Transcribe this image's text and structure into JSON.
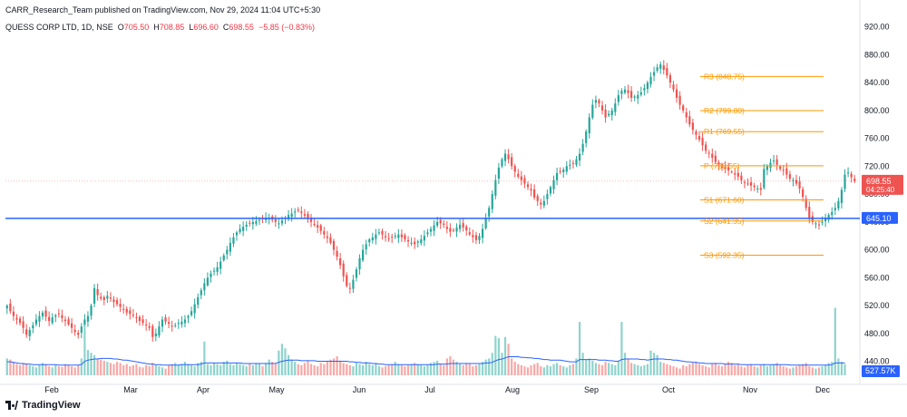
{
  "header": {
    "published": "CARR_Research_Team published on TradingView.com, Nov 29, 2024 11:04 UTC+5:30",
    "symbol": "QUESS CORP LTD, 1D, NSE",
    "o_label": "O",
    "o_value": "705.50",
    "h_label": "H",
    "h_value": "708.85",
    "l_label": "L",
    "l_value": "696.60",
    "c_label": "C",
    "c_value": "698.55",
    "change": "−5.85 (−0.83%)"
  },
  "logo": {
    "icon": "tradingview-logo-icon",
    "text": "TradingView"
  },
  "colors": {
    "up": "#26a69a",
    "down": "#ef5350",
    "pivot": "#ff9800",
    "hline": "#2962ff",
    "vol_up": "#8fd3cc",
    "vol_down": "#f7a9a7",
    "vol_ma": "#2962ff"
  },
  "chart_data": {
    "type": "candlestick",
    "y_axis": {
      "min": 420,
      "max": 935,
      "ticks": [
        920,
        880,
        840,
        800,
        760,
        720,
        680,
        640,
        600,
        560,
        520,
        480,
        440
      ]
    },
    "x_axis": {
      "labels": [
        "Feb",
        "Mar",
        "Apr",
        "May",
        "Jun",
        "Jul",
        "Aug",
        "Sep",
        "Oct",
        "Nov",
        "Dec"
      ]
    },
    "last_price": {
      "value": "698.55",
      "countdown": "04:25:40"
    },
    "horizontal_line": {
      "value": 645.1,
      "label": "645.10"
    },
    "pivots": [
      {
        "name": "R3",
        "label": "R3 (848.75)",
        "value": 848.75
      },
      {
        "name": "R2",
        "label": "R2 (799.80)",
        "value": 799.8
      },
      {
        "name": "R1",
        "label": "R1 (769.55)",
        "value": 769.55
      },
      {
        "name": "P",
        "label": "P (720.55)",
        "value": 720.55
      },
      {
        "name": "S1",
        "label": "S1 (671.60)",
        "value": 671.6
      },
      {
        "name": "S2",
        "label": "S2 (641.35)",
        "value": 641.35
      },
      {
        "name": "S3",
        "label": "S3 (592.35)",
        "value": 592.35
      }
    ],
    "volume": {
      "last_label": "527.57K"
    },
    "close": [
      520,
      512,
      505,
      500,
      495,
      488,
      478,
      485,
      492,
      500,
      505,
      510,
      504,
      498,
      503,
      506,
      508,
      502,
      498,
      493,
      488,
      482,
      478,
      490,
      500,
      505,
      520,
      545,
      535,
      530,
      528,
      534,
      530,
      525,
      522,
      518,
      515,
      510,
      508,
      506,
      502,
      498,
      495,
      492,
      488,
      475,
      480,
      490,
      500,
      497,
      494,
      490,
      492,
      495,
      497,
      500,
      505,
      512,
      522,
      532,
      542,
      552,
      560,
      566,
      570,
      575,
      583,
      592,
      600,
      610,
      618,
      625,
      630,
      633,
      636,
      638,
      640,
      641,
      643,
      645,
      646,
      645,
      643,
      640,
      638,
      642,
      646,
      650,
      652,
      655,
      657,
      653,
      649,
      645,
      640,
      636,
      632,
      627,
      622,
      617,
      610,
      600,
      590,
      578,
      562,
      548,
      545,
      557,
      572,
      588,
      600,
      608,
      615,
      618,
      622,
      625,
      622,
      618,
      616,
      618,
      620,
      622,
      618,
      615,
      612,
      610,
      608,
      612,
      615,
      620,
      625,
      630,
      635,
      640,
      638,
      636,
      630,
      626,
      628,
      632,
      636,
      632,
      628,
      622,
      618,
      614,
      620,
      630,
      645,
      660,
      680,
      700,
      718,
      730,
      738,
      730,
      720,
      712,
      705,
      700,
      695,
      690,
      685,
      675,
      670,
      665,
      670,
      680,
      690,
      700,
      710,
      712,
      715,
      720,
      722,
      724,
      730,
      738,
      752,
      770,
      790,
      808,
      815,
      810,
      800,
      790,
      795,
      800,
      810,
      822,
      828,
      830,
      825,
      818,
      820,
      822,
      826,
      832,
      840,
      848,
      855,
      862,
      866,
      858,
      850,
      840,
      830,
      818,
      808,
      800,
      790,
      780,
      772,
      765,
      758,
      750,
      742,
      738,
      732,
      726,
      722,
      718,
      716,
      714,
      712,
      708,
      705,
      700,
      696,
      694,
      692,
      690,
      688,
      686,
      716,
      720,
      725,
      728,
      722,
      716,
      714,
      708,
      702,
      700,
      695,
      688,
      676,
      660,
      646,
      640,
      638,
      636,
      640,
      646,
      650,
      654,
      660,
      670,
      686,
      708,
      711,
      704,
      698.55
    ],
    "volume_values": [
      30,
      28,
      24,
      20,
      18,
      22,
      20,
      18,
      16,
      14,
      18,
      22,
      20,
      16,
      14,
      18,
      16,
      15,
      20,
      18,
      16,
      14,
      18,
      30,
      90,
      45,
      40,
      36,
      30,
      28,
      26,
      24,
      22,
      20,
      24,
      22,
      18,
      20,
      16,
      18,
      20,
      15,
      14,
      18,
      16,
      22,
      18,
      16,
      14,
      12,
      18,
      20,
      22,
      18,
      20,
      24,
      20,
      18,
      16,
      22,
      24,
      60,
      20,
      18,
      22,
      20,
      18,
      24,
      26,
      20,
      18,
      22,
      20,
      18,
      16,
      20,
      18,
      22,
      20,
      16,
      22,
      28,
      24,
      20,
      44,
      56,
      48,
      36,
      28,
      24,
      20,
      18,
      22,
      26,
      20,
      18,
      16,
      22,
      20,
      24,
      28,
      30,
      34,
      26,
      22,
      20,
      18,
      16,
      22,
      20,
      18,
      24,
      20,
      18,
      22,
      16,
      14,
      16,
      18,
      20,
      24,
      20,
      18,
      16,
      18,
      20,
      22,
      20,
      18,
      16,
      18,
      22,
      24,
      26,
      20,
      18,
      30,
      34,
      28,
      24,
      20,
      18,
      22,
      20,
      16,
      18,
      20,
      24,
      28,
      30,
      40,
      70,
      66,
      40,
      68,
      56,
      30,
      24,
      20,
      18,
      16,
      14,
      18,
      20,
      22,
      16,
      14,
      18,
      16,
      20,
      22,
      18,
      16,
      14,
      18,
      20,
      30,
      95,
      40,
      28,
      30,
      26,
      22,
      20,
      18,
      24,
      22,
      20,
      18,
      26,
      95,
      40,
      30,
      22,
      20,
      18,
      16,
      18,
      20,
      44,
      40,
      36,
      24,
      22,
      20,
      18,
      16,
      14,
      12,
      18,
      16,
      20,
      22,
      24,
      20,
      18,
      16,
      14,
      20,
      22,
      18,
      16,
      20,
      24,
      22,
      18,
      20,
      16,
      14,
      18,
      20,
      16,
      14,
      18,
      20,
      16,
      18,
      20,
      22,
      18,
      16,
      14,
      12,
      14,
      16,
      18,
      20,
      22,
      16,
      14,
      12,
      14,
      16,
      18,
      22,
      24,
      120,
      30,
      24,
      20
    ],
    "volume_ma": [
      24,
      24,
      23,
      22,
      21,
      21,
      20,
      20,
      19,
      19,
      19,
      19,
      19,
      19,
      19,
      19,
      18,
      18,
      18,
      18,
      18,
      18,
      18,
      19,
      25,
      27,
      28,
      29,
      29,
      30,
      30,
      30,
      30,
      29,
      29,
      28,
      27,
      27,
      26,
      25,
      24,
      23,
      22,
      21,
      20,
      20,
      19,
      19,
      18,
      18,
      18,
      18,
      18,
      18,
      19,
      19,
      19,
      19,
      19,
      19,
      20,
      22,
      22,
      22,
      22,
      22,
      22,
      22,
      22,
      22,
      22,
      22,
      22,
      21,
      21,
      21,
      21,
      21,
      21,
      21,
      21,
      21,
      21,
      21,
      23,
      25,
      26,
      27,
      27,
      27,
      27,
      26,
      26,
      26,
      26,
      26,
      25,
      25,
      25,
      25,
      25,
      25,
      25,
      25,
      25,
      25,
      24,
      24,
      23,
      23,
      22,
      22,
      22,
      21,
      21,
      20,
      20,
      19,
      19,
      19,
      19,
      19,
      19,
      19,
      19,
      19,
      19,
      19,
      19,
      19,
      19,
      19,
      19,
      20,
      20,
      20,
      20,
      21,
      21,
      21,
      21,
      21,
      21,
      21,
      21,
      21,
      21,
      21,
      22,
      22,
      23,
      26,
      28,
      29,
      31,
      33,
      33,
      33,
      33,
      32,
      32,
      31,
      31,
      30,
      30,
      29,
      28,
      28,
      27,
      27,
      27,
      27,
      26,
      25,
      24,
      24,
      24,
      28,
      28,
      28,
      28,
      28,
      28,
      27,
      27,
      27,
      26,
      26,
      25,
      25,
      28,
      29,
      29,
      29,
      29,
      29,
      28,
      28,
      27,
      28,
      29,
      29,
      29,
      29,
      28,
      28,
      27,
      27,
      26,
      25,
      24,
      24,
      23,
      23,
      22,
      22,
      21,
      21,
      21,
      21,
      21,
      21,
      20,
      20,
      20,
      20,
      20,
      19,
      19,
      19,
      19,
      19,
      19,
      19,
      19,
      19,
      19,
      19,
      19,
      19,
      19,
      19,
      18,
      18,
      18,
      18,
      18,
      18,
      18,
      18,
      18,
      18,
      18,
      18,
      18,
      19,
      22,
      22,
      22,
      22
    ]
  }
}
